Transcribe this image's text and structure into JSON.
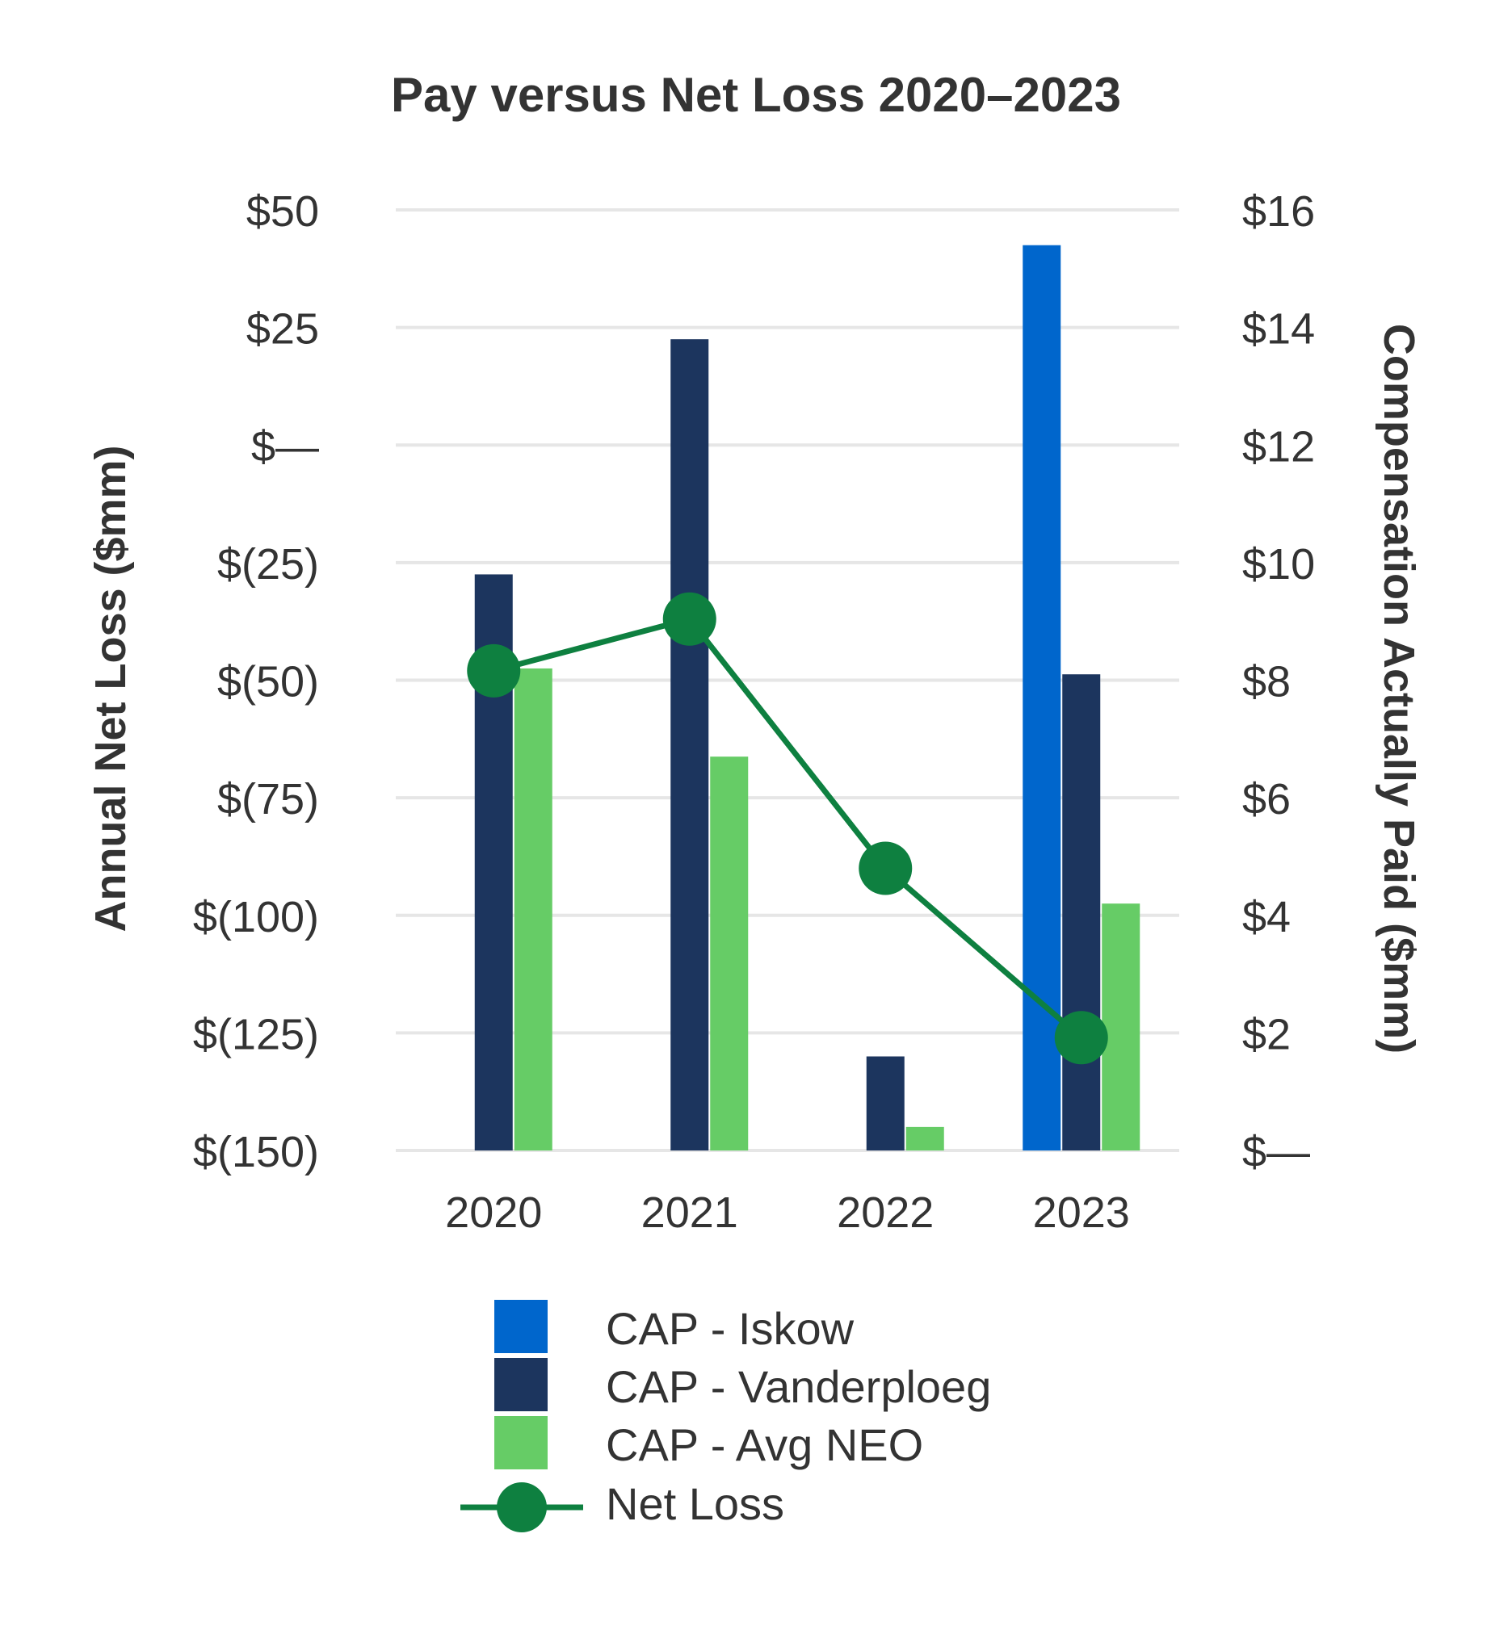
{
  "chart_data": {
    "type": "bar",
    "title": "Pay versus Net Loss 2020–2023",
    "categories": [
      "2020",
      "2021",
      "2022",
      "2023"
    ],
    "left_axis": {
      "label": "Annual Net Loss ($mm)",
      "ylim": [
        -150,
        50
      ],
      "ticks": [
        50,
        25,
        0,
        -25,
        -50,
        -75,
        -100,
        -125,
        -150
      ],
      "tick_labels": [
        "$50",
        "$25",
        "$—",
        "$(25)",
        "$(50)",
        "$(75)",
        "$(100)",
        "$(125)",
        "$(150)"
      ]
    },
    "right_axis": {
      "label": "Compensation Actually Paid ($mm)",
      "ylim": [
        0,
        16
      ],
      "ticks": [
        16,
        14,
        12,
        10,
        8,
        6,
        4,
        2,
        0
      ],
      "tick_labels": [
        "$16",
        "$14",
        "$12",
        "$10",
        "$8",
        "$6",
        "$4",
        "$2",
        "$—"
      ]
    },
    "series": [
      {
        "name": "CAP - Iskow",
        "type": "bar",
        "axis": "right",
        "color": "#0066cc",
        "values": [
          null,
          null,
          null,
          15.4
        ]
      },
      {
        "name": "CAP - Vanderploeg",
        "type": "bar",
        "axis": "right",
        "color": "#1c355e",
        "values": [
          9.8,
          13.8,
          1.6,
          8.1
        ]
      },
      {
        "name": "CAP - Avg NEO",
        "type": "bar",
        "axis": "right",
        "color": "#66cc66",
        "values": [
          8.2,
          6.7,
          0.4,
          4.2
        ]
      },
      {
        "name": "Net Loss",
        "type": "line",
        "axis": "left",
        "color": "#0e8040",
        "values": [
          -48,
          -37,
          -90,
          -126
        ]
      }
    ],
    "legend": "bottom"
  }
}
